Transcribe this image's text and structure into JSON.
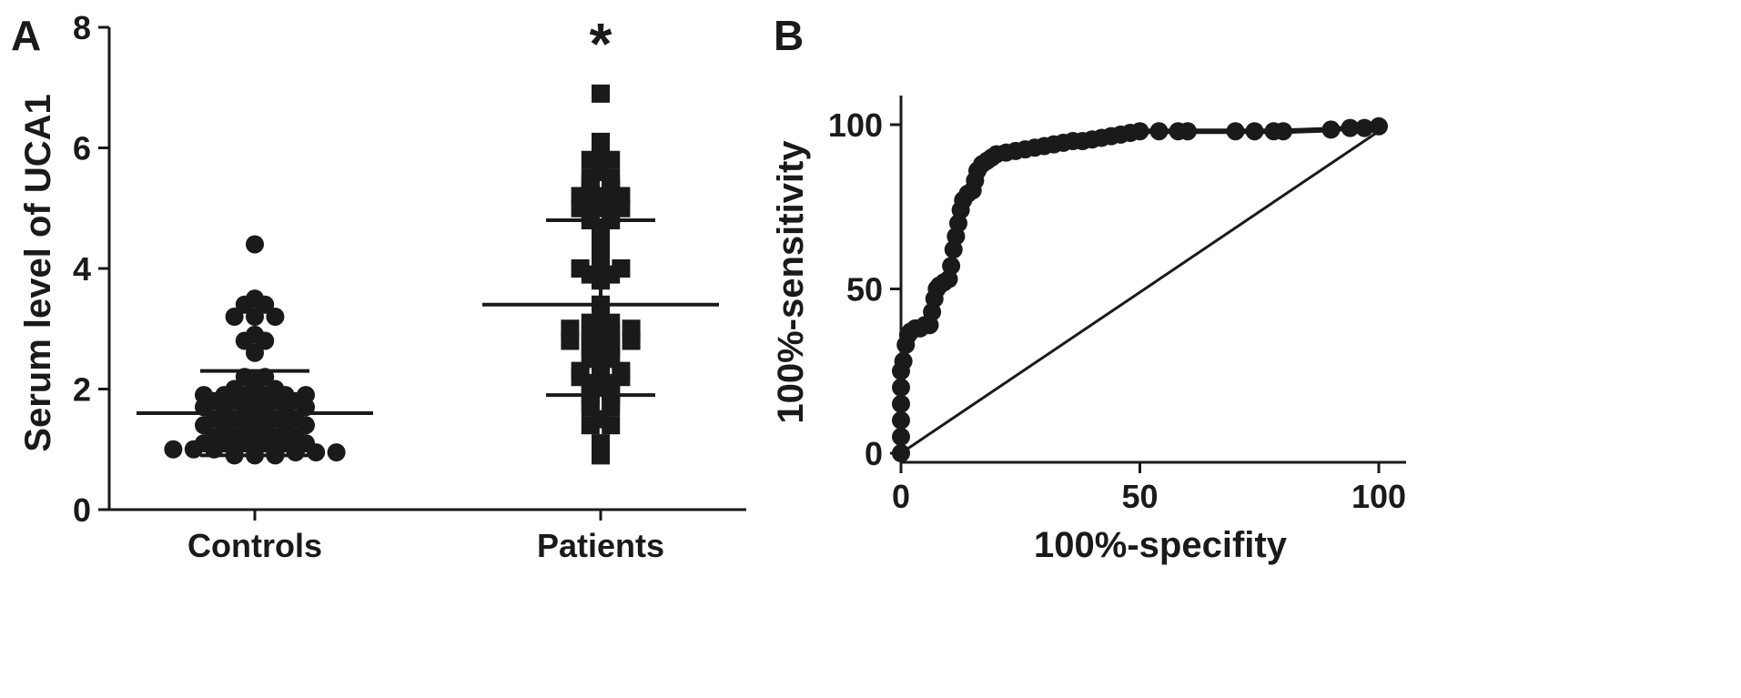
{
  "panels": {
    "a_label": "A",
    "b_label": "B"
  },
  "chart_data": [
    {
      "type": "scatter",
      "subtype": "dot-plot with mean and SD bars",
      "ylabel": "Serum level of UCA1",
      "xlabel": "",
      "ylim": [
        0,
        8
      ],
      "yticks": [
        0,
        2,
        4,
        6,
        8
      ],
      "categories": [
        "Controls",
        "Patients"
      ],
      "annotation": "*",
      "grid": false,
      "series": [
        {
          "name": "Controls",
          "marker": "circle",
          "mean": 1.6,
          "sd_upper": 2.3,
          "sd_lower": 0.9,
          "values": [
            4.4,
            3.4,
            3.5,
            3.2,
            3.2,
            3.2,
            3.4,
            2.9,
            2.8,
            2.8,
            2.6,
            2.2,
            2.2,
            2.0,
            2.0,
            2.0,
            1.9,
            1.9,
            1.9,
            1.9,
            1.9,
            1.9,
            1.8,
            1.8,
            1.8,
            1.8,
            1.8,
            1.7,
            1.7,
            1.7,
            1.7,
            1.7,
            1.7,
            1.6,
            1.6,
            1.6,
            1.6,
            1.5,
            1.5,
            1.5,
            1.5,
            1.5,
            1.4,
            1.4,
            1.4,
            1.4,
            1.4,
            1.4,
            1.3,
            1.3,
            1.3,
            1.3,
            1.2,
            1.2,
            1.2,
            1.2,
            1.2,
            1.1,
            1.1,
            1.1,
            1.1,
            1.1,
            1.1,
            1.0,
            1.0,
            1.0,
            1.0,
            1.0,
            0.95,
            0.95,
            0.95,
            0.95,
            0.9,
            0.9,
            0.9
          ]
        },
        {
          "name": "Patients",
          "marker": "square",
          "mean": 3.4,
          "sd_upper": 4.8,
          "sd_lower": 1.9,
          "values": [
            6.9,
            6.1,
            6.0,
            5.8,
            5.8,
            5.7,
            5.6,
            5.5,
            5.5,
            5.4,
            5.4,
            5.3,
            5.3,
            5.2,
            5.2,
            5.2,
            5.1,
            5.1,
            5.0,
            5.0,
            5.0,
            4.9,
            4.9,
            4.8,
            4.8,
            4.5,
            4.4,
            4.2,
            4.1,
            4.0,
            4.0,
            4.0,
            3.9,
            3.9,
            3.8,
            3.4,
            3.3,
            3.2,
            3.1,
            3.1,
            3.0,
            3.0,
            3.0,
            3.0,
            2.9,
            2.9,
            2.8,
            2.8,
            2.8,
            2.8,
            2.7,
            2.7,
            2.6,
            2.6,
            2.5,
            2.5,
            2.4,
            2.3,
            2.3,
            2.3,
            2.2,
            2.2,
            2.2,
            2.1,
            2.1,
            2.0,
            2.0,
            1.9,
            1.9,
            1.8,
            1.8,
            1.7,
            1.7,
            1.5,
            1.4,
            1.4,
            1.1,
            0.9
          ]
        }
      ]
    },
    {
      "type": "line",
      "subtype": "ROC curve",
      "xlabel": "100%-specifity",
      "ylabel": "100%-sensitivity",
      "xlim": [
        0,
        100
      ],
      "ylim": [
        0,
        100
      ],
      "xticks": [
        0,
        50,
        100
      ],
      "yticks": [
        0,
        50,
        100
      ],
      "grid": false,
      "series": [
        {
          "name": "",
          "points": [
            [
              0,
              0
            ],
            [
              0,
              5
            ],
            [
              0,
              10
            ],
            [
              0,
              15
            ],
            [
              0,
              20
            ],
            [
              0,
              25
            ],
            [
              0.5,
              28
            ],
            [
              1,
              33
            ],
            [
              1.5,
              36
            ],
            [
              2,
              37
            ],
            [
              3,
              38
            ],
            [
              4,
              38
            ],
            [
              5,
              39
            ],
            [
              6,
              39
            ],
            [
              6.5,
              43
            ],
            [
              7,
              47
            ],
            [
              7.5,
              50
            ],
            [
              8,
              51
            ],
            [
              9,
              52
            ],
            [
              10,
              53
            ],
            [
              10.5,
              57
            ],
            [
              11,
              62
            ],
            [
              11.5,
              66
            ],
            [
              12,
              70
            ],
            [
              12.5,
              74
            ],
            [
              13,
              77
            ],
            [
              14,
              79
            ],
            [
              15,
              80
            ],
            [
              15.5,
              83
            ],
            [
              16,
              86
            ],
            [
              17,
              88
            ],
            [
              18,
              89
            ],
            [
              19,
              90
            ],
            [
              20,
              91
            ],
            [
              22,
              91.5
            ],
            [
              24,
              92
            ],
            [
              26,
              92.5
            ],
            [
              28,
              93
            ],
            [
              30,
              93.5
            ],
            [
              32,
              94
            ],
            [
              34,
              94.5
            ],
            [
              36,
              95
            ],
            [
              38,
              95
            ],
            [
              40,
              95.5
            ],
            [
              42,
              96
            ],
            [
              44,
              96.5
            ],
            [
              46,
              97
            ],
            [
              48,
              97.5
            ],
            [
              50,
              98
            ],
            [
              54,
              98
            ],
            [
              58,
              98
            ],
            [
              60,
              98
            ],
            [
              70,
              98
            ],
            [
              74,
              98
            ],
            [
              78,
              98
            ],
            [
              80,
              98
            ],
            [
              90,
              98.5
            ],
            [
              94,
              99
            ],
            [
              97,
              99
            ],
            [
              100,
              99.5
            ]
          ],
          "points_x_units": "100%-specifity",
          "points_y_units": "100%-sensitivity"
        },
        {
          "name": "",
          "style": "reference diagonal",
          "points": [
            [
              0,
              0
            ],
            [
              100,
              98
            ]
          ]
        }
      ]
    }
  ]
}
